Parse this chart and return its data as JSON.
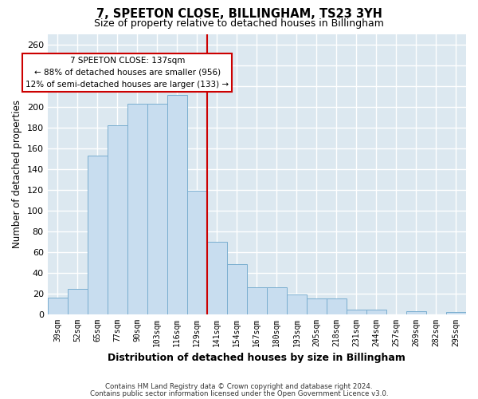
{
  "title": "7, SPEETON CLOSE, BILLINGHAM, TS23 3YH",
  "subtitle": "Size of property relative to detached houses in Billingham",
  "xlabel": "Distribution of detached houses by size in Billingham",
  "ylabel": "Number of detached properties",
  "categories": [
    "39sqm",
    "52sqm",
    "65sqm",
    "77sqm",
    "90sqm",
    "103sqm",
    "116sqm",
    "129sqm",
    "141sqm",
    "154sqm",
    "167sqm",
    "180sqm",
    "193sqm",
    "205sqm",
    "218sqm",
    "231sqm",
    "244sqm",
    "257sqm",
    "269sqm",
    "282sqm",
    "295sqm"
  ],
  "values": [
    16,
    24,
    153,
    182,
    203,
    203,
    211,
    119,
    70,
    48,
    26,
    26,
    19,
    15,
    15,
    4,
    4,
    0,
    3,
    0,
    2
  ],
  "bar_color": "#c8ddef",
  "bar_edge_color": "#7aaed0",
  "vline_color": "#cc0000",
  "annotation_title": "7 SPEETON CLOSE: 137sqm",
  "annotation_line1": "← 88% of detached houses are smaller (956)",
  "annotation_line2": "12% of semi-detached houses are larger (133) →",
  "annotation_box_color": "#ffffff",
  "annotation_box_edge": "#cc0000",
  "ylim": [
    0,
    270
  ],
  "yticks": [
    0,
    20,
    40,
    60,
    80,
    100,
    120,
    140,
    160,
    180,
    200,
    220,
    240,
    260
  ],
  "footer1": "Contains HM Land Registry data © Crown copyright and database right 2024.",
  "footer2": "Contains public sector information licensed under the Open Government Licence v3.0.",
  "plot_bg_color": "#dce8f0",
  "fig_bg_color": "#ffffff",
  "grid_color": "#ffffff"
}
